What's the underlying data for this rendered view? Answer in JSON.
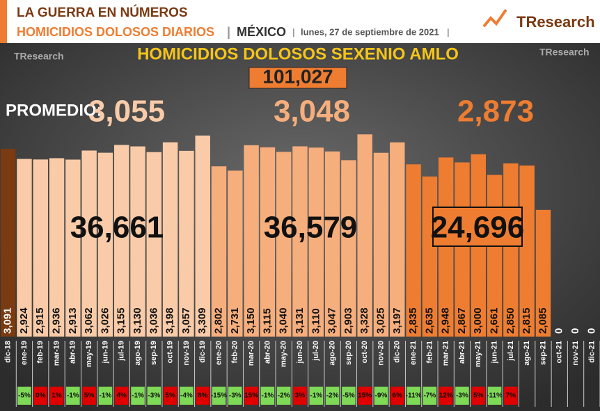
{
  "header": {
    "kicker": "LA GUERRA EN NÚMEROS",
    "subject": "HOMICIDIOS DOLOSOS DIARIOS",
    "country": "MÉXICO",
    "date": "lunes, 27 de septiembre de 2021",
    "logo": "TResearch"
  },
  "chart_data": {
    "type": "bar",
    "title": "HOMICIDIOS DOLOSOS SEXENIO AMLO",
    "average_title": "PROMEDIO:",
    "categories": [
      "dic-18",
      "ene-19",
      "feb-19",
      "mar-19",
      "abr-19",
      "may-19",
      "jun-19",
      "jul-19",
      "ago-19",
      "sep-19",
      "oct-19",
      "nov-19",
      "dic-19",
      "ene-20",
      "feb-20",
      "mar-20",
      "abr-20",
      "may-20",
      "jun-20",
      "jul-20",
      "ago-20",
      "sep-20",
      "oct-20",
      "nov-20",
      "dic-20",
      "ene-21",
      "feb-21",
      "mar-21",
      "abr-21",
      "may-21",
      "jun-21",
      "jul-21",
      "ago-21",
      "sep-21",
      "oct-21",
      "nov-21",
      "dic-21"
    ],
    "values": [
      3091,
      2924,
      2915,
      2936,
      2913,
      3062,
      3026,
      3155,
      3130,
      3036,
      3198,
      3057,
      3309,
      2802,
      2731,
      3150,
      3115,
      3040,
      3131,
      3110,
      3047,
      2903,
      3328,
      3025,
      3197,
      2835,
      2635,
      2948,
      2867,
      3000,
      2661,
      2850,
      2815,
      2085,
      0,
      0,
      0
    ],
    "value_labels": [
      "3,091",
      "2,924",
      "2,915",
      "2,936",
      "2,913",
      "3,062",
      "3,026",
      "3,155",
      "3,130",
      "3,036",
      "3,198",
      "3,057",
      "3,309",
      "2,802",
      "2,731",
      "3,150",
      "3,115",
      "3,040",
      "3,131",
      "3,110",
      "3,047",
      "2,903",
      "3,328",
      "3,025",
      "3,197",
      "2,835",
      "2,635",
      "2,948",
      "2,867",
      "3,000",
      "2,661",
      "2,850",
      "2,815",
      "2,085",
      "0",
      "0",
      "0"
    ],
    "colors": [
      "#7a3a12",
      "#f9cba8",
      "#f9cba8",
      "#f9cba8",
      "#f9cba8",
      "#f9cba8",
      "#f9cba8",
      "#f9cba8",
      "#f9cba8",
      "#f9cba8",
      "#f9cba8",
      "#f9cba8",
      "#f9cba8",
      "#f6ae7c",
      "#f6ae7c",
      "#f6ae7c",
      "#f6ae7c",
      "#f6ae7c",
      "#f6ae7c",
      "#f6ae7c",
      "#f6ae7c",
      "#f6ae7c",
      "#f6ae7c",
      "#f6ae7c",
      "#f6ae7c",
      "#ee7d31",
      "#ee7d31",
      "#ee7d31",
      "#ee7d31",
      "#ee7d31",
      "#ee7d31",
      "#ee7d31",
      "#ee7d31",
      "#ee7d31",
      "#ee7d31",
      "#ee7d31",
      "#ee7d31"
    ],
    "ylim": [
      0,
      4830
    ],
    "changes": [
      null,
      {
        "value": -5,
        "label": "-5%"
      },
      {
        "value": 0,
        "label": "0%"
      },
      {
        "value": 1,
        "label": "1%"
      },
      {
        "value": -1,
        "label": "-1%"
      },
      {
        "value": 5,
        "label": "5%"
      },
      {
        "value": -1,
        "label": "-1%"
      },
      {
        "value": 4,
        "label": "4%"
      },
      {
        "value": -1,
        "label": "-1%"
      },
      {
        "value": -3,
        "label": "-3%"
      },
      {
        "value": 5,
        "label": "5%"
      },
      {
        "value": -4,
        "label": "-4%"
      },
      {
        "value": 8,
        "label": "8%"
      },
      {
        "value": -15,
        "label": "-15%"
      },
      {
        "value": -3,
        "label": "-3%"
      },
      {
        "value": 15,
        "label": "15%"
      },
      {
        "value": -1,
        "label": "-1%"
      },
      {
        "value": -2,
        "label": "-2%"
      },
      {
        "value": 3,
        "label": "3%"
      },
      {
        "value": -1,
        "label": "-1%"
      },
      {
        "value": -2,
        "label": "-2%"
      },
      {
        "value": -5,
        "label": "-5%"
      },
      {
        "value": 15,
        "label": "15%"
      },
      {
        "value": -9,
        "label": "-9%"
      },
      {
        "value": 6,
        "label": "6%"
      },
      {
        "value": -11,
        "label": "-11%"
      },
      {
        "value": -7,
        "label": "-7%"
      },
      {
        "value": 12,
        "label": "12%"
      },
      {
        "value": -3,
        "label": "-3%"
      },
      {
        "value": 5,
        "label": "5%"
      },
      {
        "value": -11,
        "label": "-11%"
      },
      {
        "value": 7,
        "label": "7%"
      },
      null,
      null,
      null,
      null,
      null
    ],
    "grand_total": {
      "value": 101027,
      "label": "101,027"
    },
    "groups": [
      {
        "total": {
          "value": 36661,
          "label": "36,661"
        },
        "average": {
          "value": 3055,
          "label": "3,055"
        }
      },
      {
        "total": {
          "value": 36579,
          "label": "36,579"
        },
        "average": {
          "value": 3048,
          "label": "3,048"
        }
      },
      {
        "total": {
          "value": 24696,
          "label": "24,696"
        },
        "average": {
          "value": 2873,
          "label": "2,873"
        }
      }
    ]
  }
}
